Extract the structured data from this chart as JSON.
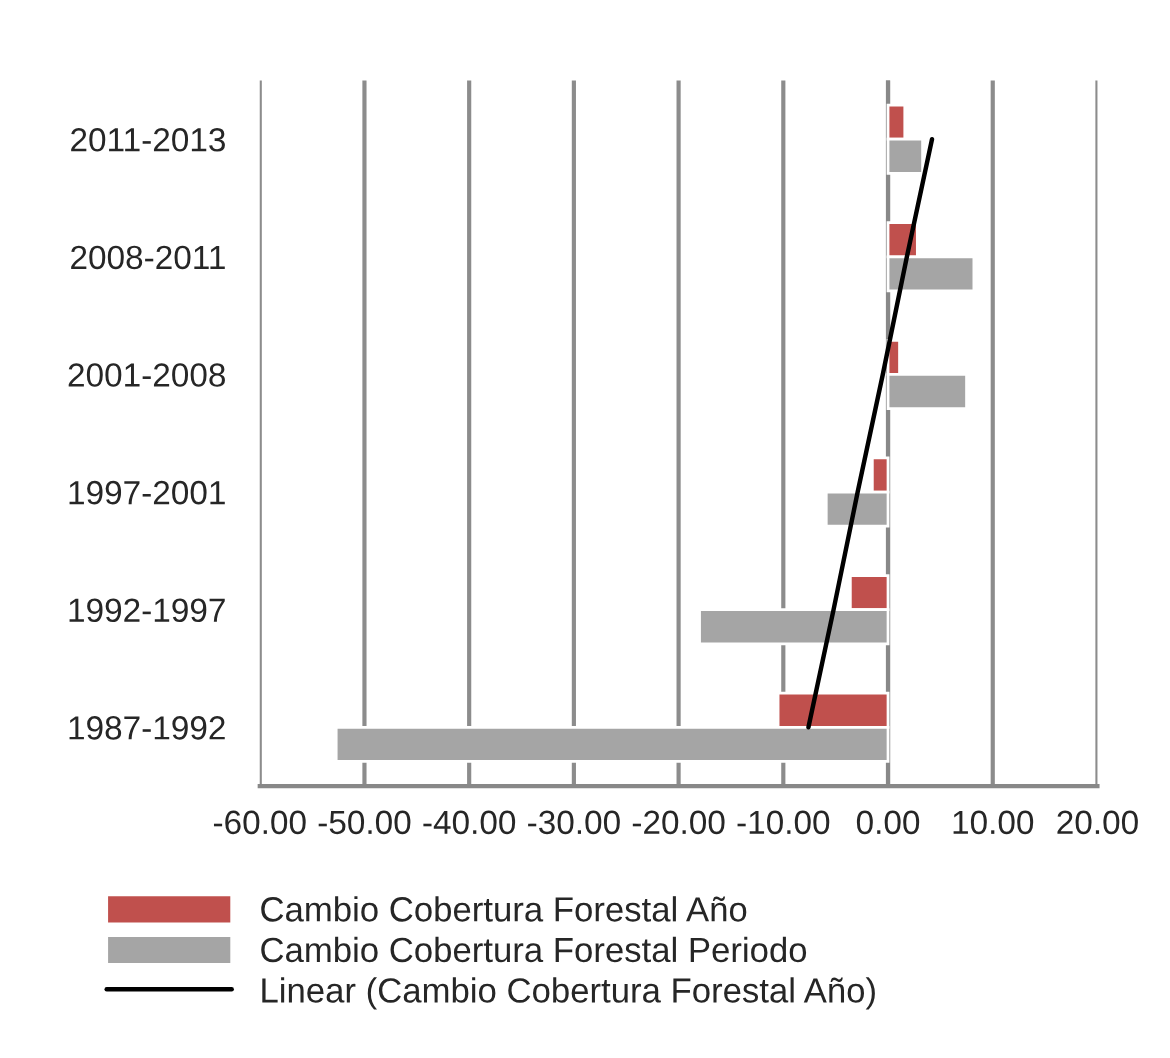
{
  "chart_data": {
    "type": "bar",
    "orientation": "horizontal",
    "categories": [
      "2011-2013",
      "2008-2011",
      "2001-2008",
      "1997-2001",
      "1992-1997",
      "1987-1992"
    ],
    "series": [
      {
        "name": "Cambio Cobertura Forestal Año",
        "color": "#c0504d",
        "values": [
          1.6,
          2.8,
          1.1,
          -1.5,
          -3.6,
          -10.5
        ]
      },
      {
        "name": "Cambio Cobertura Forestal Periodo",
        "color": "#a5a5a5",
        "values": [
          3.3,
          8.2,
          7.5,
          -5.9,
          -18.0,
          -52.7
        ]
      },
      {
        "name": "Linear (Cambio Cobertura Forestal Año)",
        "type": "line",
        "color": "#000000",
        "values": [
          4.2,
          1.8,
          -0.5,
          -2.9,
          -5.2,
          -7.6
        ]
      }
    ],
    "xlim": [
      -60,
      20
    ],
    "xticks": [
      {
        "value": -60,
        "label": "-60.00"
      },
      {
        "value": -50,
        "label": "-50.00"
      },
      {
        "value": -40,
        "label": "-40.00"
      },
      {
        "value": -30,
        "label": "-30.00"
      },
      {
        "value": -20,
        "label": "-20.00"
      },
      {
        "value": -10,
        "label": "-10.00"
      },
      {
        "value": 0,
        "label": "0.00"
      },
      {
        "value": 10,
        "label": "10.00"
      },
      {
        "value": 20,
        "label": "20.00"
      }
    ],
    "grid": "x",
    "legend": "bottom"
  }
}
